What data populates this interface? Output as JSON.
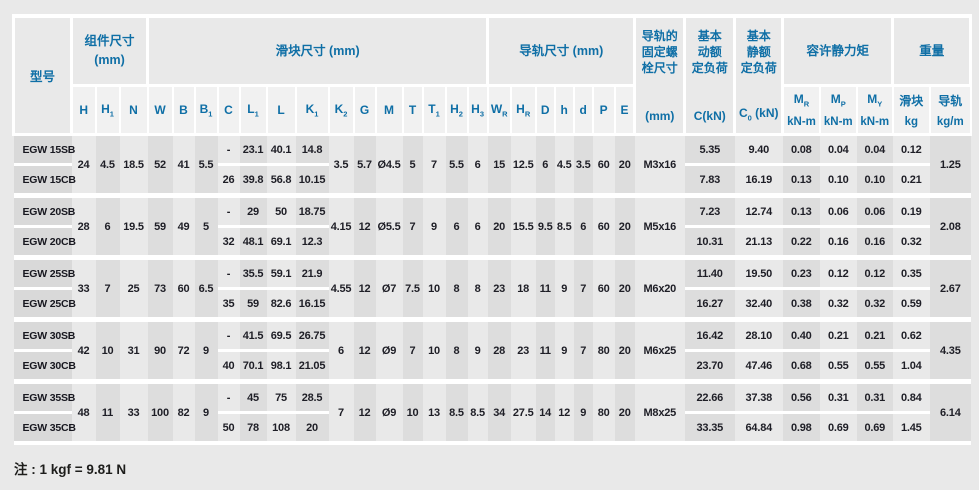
{
  "header": {
    "model": "型号",
    "groups": {
      "component": {
        "label": "组件尺寸\n(mm)"
      },
      "block": {
        "label": "滑块尺寸 (mm)"
      },
      "rail": {
        "label": "导轨尺寸 (mm)"
      },
      "moment": {
        "label": "容许静力矩"
      },
      "weight": {
        "label": "重量"
      }
    },
    "bolt": {
      "title": "导轨的\n固定螺\n栓尺寸",
      "unit": "(mm)"
    },
    "dynamic_load": {
      "title": "基本\n动额\n定负荷",
      "unit": "C(kN)"
    },
    "static_load": {
      "title": "基本\n静额\n定负荷",
      "unit_pre": "C",
      "unit_sub": "0",
      "unit_post": " (kN)"
    },
    "dim_cols": [
      {
        "m": "H",
        "s": ""
      },
      {
        "m": "H",
        "s": "1"
      },
      {
        "m": "N",
        "s": ""
      },
      {
        "m": "W",
        "s": ""
      },
      {
        "m": "B",
        "s": ""
      },
      {
        "m": "B",
        "s": "1"
      },
      {
        "m": "C",
        "s": ""
      },
      {
        "m": "L",
        "s": "1"
      },
      {
        "m": "L",
        "s": ""
      },
      {
        "m": "K",
        "s": "1"
      },
      {
        "m": "K",
        "s": "2"
      },
      {
        "m": "G",
        "s": ""
      },
      {
        "m": "M",
        "s": ""
      },
      {
        "m": "T",
        "s": ""
      },
      {
        "m": "T",
        "s": "1"
      },
      {
        "m": "H",
        "s": "2"
      },
      {
        "m": "H",
        "s": "3"
      },
      {
        "m": "W",
        "s": "R"
      },
      {
        "m": "H",
        "s": "R"
      },
      {
        "m": "D",
        "s": ""
      },
      {
        "m": "h",
        "s": ""
      },
      {
        "m": "d",
        "s": ""
      },
      {
        "m": "P",
        "s": ""
      },
      {
        "m": "E",
        "s": ""
      }
    ],
    "moment_cols": [
      {
        "m": "M",
        "s": "R",
        "unit": "kN-m"
      },
      {
        "m": "M",
        "s": "P",
        "unit": "kN-m"
      },
      {
        "m": "M",
        "s": "Y",
        "unit": "kN-m"
      }
    ],
    "weight_cols": [
      {
        "label": "滑块",
        "unit": "kg"
      },
      {
        "label": "导轨",
        "unit": "kg/m"
      }
    ]
  },
  "groups": [
    {
      "shared_a": [
        "24",
        "4.5",
        "18.5",
        "52",
        "41",
        "5.5"
      ],
      "shared_b": [
        "3.5",
        "5.7",
        "Ø4.5",
        "5",
        "7",
        "5.5",
        "6",
        "15",
        "12.5",
        "6",
        "4.5",
        "3.5",
        "60",
        "20",
        "M3x16"
      ],
      "rail_weight": "1.25",
      "rows": [
        {
          "model": "EGW 15SB",
          "a": [
            "-",
            "23.1",
            "40.1",
            "14.8"
          ],
          "b": [
            "5.35",
            "9.40",
            "0.08",
            "0.04",
            "0.04",
            "0.12"
          ]
        },
        {
          "model": "EGW 15CB",
          "a": [
            "26",
            "39.8",
            "56.8",
            "10.15"
          ],
          "b": [
            "7.83",
            "16.19",
            "0.13",
            "0.10",
            "0.10",
            "0.21"
          ]
        }
      ]
    },
    {
      "shared_a": [
        "28",
        "6",
        "19.5",
        "59",
        "49",
        "5"
      ],
      "shared_b": [
        "4.15",
        "12",
        "Ø5.5",
        "7",
        "9",
        "6",
        "6",
        "20",
        "15.5",
        "9.5",
        "8.5",
        "6",
        "60",
        "20",
        "M5x16"
      ],
      "rail_weight": "2.08",
      "rows": [
        {
          "model": "EGW 20SB",
          "a": [
            "-",
            "29",
            "50",
            "18.75"
          ],
          "b": [
            "7.23",
            "12.74",
            "0.13",
            "0.06",
            "0.06",
            "0.19"
          ]
        },
        {
          "model": "EGW 20CB",
          "a": [
            "32",
            "48.1",
            "69.1",
            "12.3"
          ],
          "b": [
            "10.31",
            "21.13",
            "0.22",
            "0.16",
            "0.16",
            "0.32"
          ]
        }
      ]
    },
    {
      "shared_a": [
        "33",
        "7",
        "25",
        "73",
        "60",
        "6.5"
      ],
      "shared_b": [
        "4.55",
        "12",
        "Ø7",
        "7.5",
        "10",
        "8",
        "8",
        "23",
        "18",
        "11",
        "9",
        "7",
        "60",
        "20",
        "M6x20"
      ],
      "rail_weight": "2.67",
      "rows": [
        {
          "model": "EGW 25SB",
          "a": [
            "-",
            "35.5",
            "59.1",
            "21.9"
          ],
          "b": [
            "11.40",
            "19.50",
            "0.23",
            "0.12",
            "0.12",
            "0.35"
          ]
        },
        {
          "model": "EGW 25CB",
          "a": [
            "35",
            "59",
            "82.6",
            "16.15"
          ],
          "b": [
            "16.27",
            "32.40",
            "0.38",
            "0.32",
            "0.32",
            "0.59"
          ]
        }
      ]
    },
    {
      "shared_a": [
        "42",
        "10",
        "31",
        "90",
        "72",
        "9"
      ],
      "shared_b": [
        "6",
        "12",
        "Ø9",
        "7",
        "10",
        "8",
        "9",
        "28",
        "23",
        "11",
        "9",
        "7",
        "80",
        "20",
        "M6x25"
      ],
      "rail_weight": "4.35",
      "rows": [
        {
          "model": "EGW 30SB",
          "a": [
            "-",
            "41.5",
            "69.5",
            "26.75"
          ],
          "b": [
            "16.42",
            "28.10",
            "0.40",
            "0.21",
            "0.21",
            "0.62"
          ]
        },
        {
          "model": "EGW 30CB",
          "a": [
            "40",
            "70.1",
            "98.1",
            "21.05"
          ],
          "b": [
            "23.70",
            "47.46",
            "0.68",
            "0.55",
            "0.55",
            "1.04"
          ]
        }
      ]
    },
    {
      "shared_a": [
        "48",
        "11",
        "33",
        "100",
        "82",
        "9"
      ],
      "shared_b": [
        "7",
        "12",
        "Ø9",
        "10",
        "13",
        "8.5",
        "8.5",
        "34",
        "27.5",
        "14",
        "12",
        "9",
        "80",
        "20",
        "M8x25"
      ],
      "rail_weight": "6.14",
      "rows": [
        {
          "model": "EGW 35SB",
          "a": [
            "-",
            "45",
            "75",
            "28.5"
          ],
          "b": [
            "22.66",
            "37.38",
            "0.56",
            "0.31",
            "0.31",
            "0.84"
          ]
        },
        {
          "model": "EGW 35CB",
          "a": [
            "50",
            "78",
            "108",
            "20"
          ],
          "b": [
            "33.35",
            "64.84",
            "0.98",
            "0.69",
            "0.69",
            "1.45"
          ]
        }
      ]
    }
  ],
  "note": "注 : 1 kgf = 9.81 N"
}
